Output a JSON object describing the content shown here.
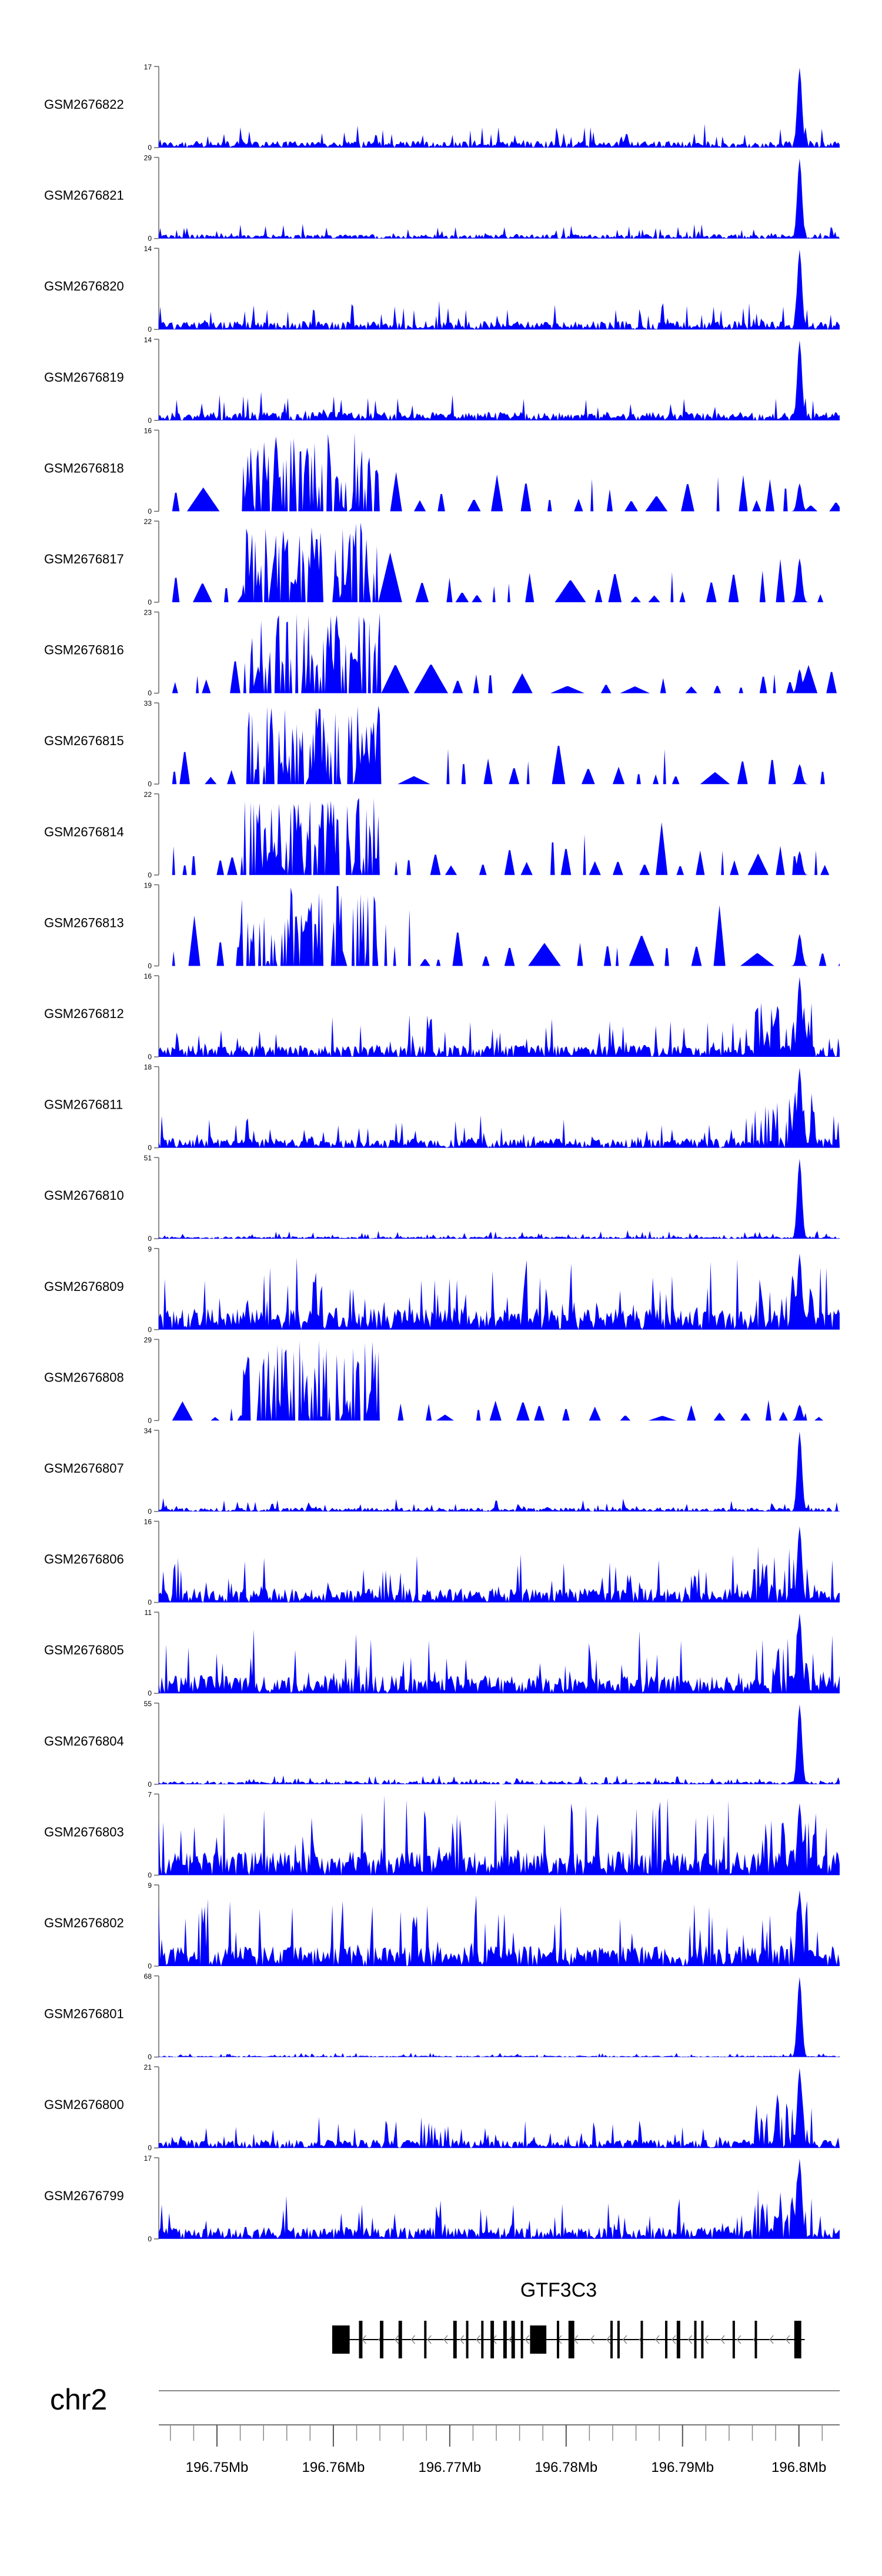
{
  "chart_data": {
    "type": "area",
    "chromosome": "chr2",
    "xlim": [
      196.745,
      196.8035
    ],
    "x_axis_ticks": [
      "196.75Mb",
      "196.76Mb",
      "196.77Mb",
      "196.78Mb",
      "196.79Mb",
      "196.8Mb"
    ],
    "x_axis_tick_values": [
      196.75,
      196.76,
      196.77,
      196.78,
      196.79,
      196.8
    ],
    "fill_color": "#0000ff",
    "gene": {
      "name": "GTF3C3",
      "strand": "-",
      "start": 196.7599,
      "end": 196.8005,
      "exons": [
        [
          196.7599,
          196.7614
        ],
        [
          196.7622,
          196.7625
        ],
        [
          196.764,
          196.7643
        ],
        [
          196.7656,
          196.7659
        ],
        [
          196.7678,
          196.768
        ],
        [
          196.7703,
          196.7706
        ],
        [
          196.7714,
          196.7716
        ],
        [
          196.7727,
          196.7729
        ],
        [
          196.7735,
          196.7738
        ],
        [
          196.7746,
          196.7749
        ],
        [
          196.7753,
          196.7756
        ],
        [
          196.7761,
          196.7763
        ],
        [
          196.7769,
          196.7783
        ],
        [
          196.7792,
          196.7794
        ],
        [
          196.7802,
          196.7807
        ],
        [
          196.7838,
          196.784
        ],
        [
          196.7844,
          196.7846
        ],
        [
          196.7864,
          196.7866
        ],
        [
          196.7885,
          196.7887
        ],
        [
          196.7895,
          196.7898
        ],
        [
          196.791,
          196.7912
        ],
        [
          196.7916,
          196.7918
        ],
        [
          196.7943,
          196.7945
        ],
        [
          196.7962,
          196.7964
        ],
        [
          196.7996,
          196.8002
        ]
      ]
    },
    "tracks": [
      {
        "name": "GSM2676822",
        "ymax": 17,
        "profile": "promoter",
        "peak": 1.0,
        "bg": 0.14,
        "seed": 822
      },
      {
        "name": "GSM2676821",
        "ymax": 29,
        "profile": "promoter",
        "peak": 1.0,
        "bg": 0.09,
        "seed": 821
      },
      {
        "name": "GSM2676820",
        "ymax": 14,
        "profile": "promoter",
        "peak": 1.0,
        "bg": 0.18,
        "seed": 820
      },
      {
        "name": "GSM2676819",
        "ymax": 14,
        "profile": "promoter",
        "peak": 1.0,
        "bg": 0.18,
        "seed": 819
      },
      {
        "name": "GSM2676818",
        "ymax": 16,
        "profile": "sparse",
        "peak": 0.35,
        "bg": 0.35,
        "seed": 818
      },
      {
        "name": "GSM2676817",
        "ymax": 22,
        "profile": "sparse",
        "peak": 0.55,
        "bg": 0.32,
        "seed": 817
      },
      {
        "name": "GSM2676816",
        "ymax": 23,
        "profile": "sparse",
        "peak": 0.3,
        "bg": 0.3,
        "seed": 816
      },
      {
        "name": "GSM2676815",
        "ymax": 33,
        "profile": "sparse",
        "peak": 0.25,
        "bg": 0.28,
        "seed": 815
      },
      {
        "name": "GSM2676814",
        "ymax": 22,
        "profile": "sparse",
        "peak": 0.3,
        "bg": 0.3,
        "seed": 814
      },
      {
        "name": "GSM2676813",
        "ymax": 19,
        "profile": "sparse",
        "peak": 0.4,
        "bg": 0.4,
        "seed": 813
      },
      {
        "name": "GSM2676812",
        "ymax": 16,
        "profile": "dense",
        "peak": 1.0,
        "bg": 0.25,
        "seed": 812
      },
      {
        "name": "GSM2676811",
        "ymax": 18,
        "profile": "dense",
        "peak": 1.0,
        "bg": 0.2,
        "seed": 811
      },
      {
        "name": "GSM2676810",
        "ymax": 51,
        "profile": "promoter",
        "peak": 1.0,
        "bg": 0.05,
        "seed": 810
      },
      {
        "name": "GSM2676809",
        "ymax": 9,
        "profile": "dense",
        "peak": 0.95,
        "bg": 0.45,
        "seed": 809
      },
      {
        "name": "GSM2676808",
        "ymax": 29,
        "profile": "sparse",
        "peak": 0.2,
        "bg": 0.2,
        "seed": 808
      },
      {
        "name": "GSM2676807",
        "ymax": 34,
        "profile": "promoter",
        "peak": 1.0,
        "bg": 0.08,
        "seed": 807
      },
      {
        "name": "GSM2676806",
        "ymax": 16,
        "profile": "dense",
        "peak": 0.95,
        "bg": 0.3,
        "seed": 806
      },
      {
        "name": "GSM2676805",
        "ymax": 11,
        "profile": "dense",
        "peak": 1.0,
        "bg": 0.38,
        "seed": 805
      },
      {
        "name": "GSM2676804",
        "ymax": 55,
        "profile": "promoter",
        "peak": 1.0,
        "bg": 0.06,
        "seed": 804
      },
      {
        "name": "GSM2676803",
        "ymax": 7,
        "profile": "dense",
        "peak": 0.9,
        "bg": 0.5,
        "seed": 803
      },
      {
        "name": "GSM2676802",
        "ymax": 9,
        "profile": "dense",
        "peak": 0.95,
        "bg": 0.42,
        "seed": 802
      },
      {
        "name": "GSM2676801",
        "ymax": 68,
        "profile": "promoter",
        "peak": 1.0,
        "bg": 0.03,
        "seed": 801
      },
      {
        "name": "GSM2676800",
        "ymax": 21,
        "profile": "dense",
        "peak": 1.0,
        "bg": 0.18,
        "seed": 800
      },
      {
        "name": "GSM2676799",
        "ymax": 17,
        "profile": "dense",
        "peak": 1.0,
        "bg": 0.25,
        "seed": 799
      }
    ]
  }
}
